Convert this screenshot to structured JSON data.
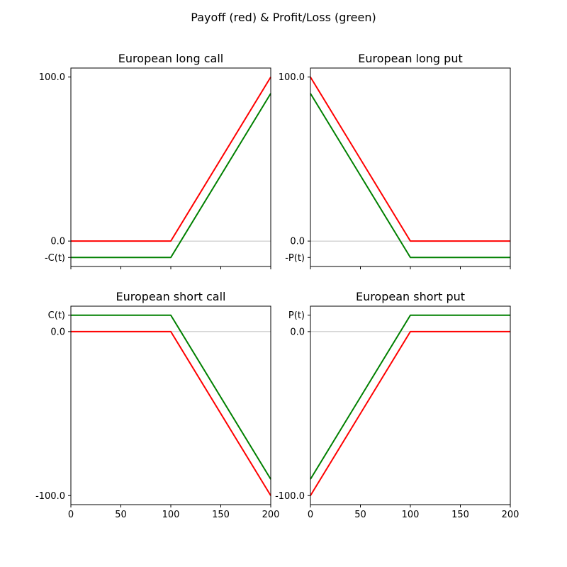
{
  "figure": {
    "suptitle": "Payoff (red) & Profit/Loss (green)"
  },
  "chart_data": [
    {
      "type": "line",
      "title": "European long call",
      "xlim": [
        0,
        200
      ],
      "ylim": [
        -15.5,
        105.5
      ],
      "xticks": [
        0,
        50,
        100,
        150,
        200
      ],
      "xtick_labels_shown": false,
      "yticks": [
        {
          "value": 100,
          "label": "100.0"
        },
        {
          "value": 0,
          "label": "0.0"
        },
        {
          "value": -10,
          "label": "-C(t)"
        }
      ],
      "zero_line": true,
      "series": [
        {
          "color": "#ff0000",
          "points": [
            [
              0,
              0
            ],
            [
              100,
              0
            ],
            [
              200,
              100
            ]
          ]
        },
        {
          "color": "#008000",
          "points": [
            [
              0,
              -10
            ],
            [
              100,
              -10
            ],
            [
              200,
              90
            ]
          ]
        }
      ]
    },
    {
      "type": "line",
      "title": "European long put",
      "xlim": [
        0,
        200
      ],
      "ylim": [
        -15.5,
        105.5
      ],
      "xticks": [
        0,
        50,
        100,
        150,
        200
      ],
      "xtick_labels_shown": false,
      "yticks": [
        {
          "value": 100,
          "label": "100.0"
        },
        {
          "value": 0,
          "label": "0.0"
        },
        {
          "value": -10,
          "label": "-P(t)"
        }
      ],
      "zero_line": true,
      "series": [
        {
          "color": "#ff0000",
          "points": [
            [
              0,
              100
            ],
            [
              100,
              0
            ],
            [
              200,
              0
            ]
          ]
        },
        {
          "color": "#008000",
          "points": [
            [
              0,
              90
            ],
            [
              100,
              -10
            ],
            [
              200,
              -10
            ]
          ]
        }
      ]
    },
    {
      "type": "line",
      "title": "European short call",
      "xlim": [
        0,
        200
      ],
      "ylim": [
        -105.5,
        15.5
      ],
      "xticks": [
        0,
        50,
        100,
        150,
        200
      ],
      "xtick_labels_shown": true,
      "yticks": [
        {
          "value": 10,
          "label": "C(t)"
        },
        {
          "value": 0,
          "label": "0.0"
        },
        {
          "value": -100,
          "label": "-100.0"
        }
      ],
      "zero_line": true,
      "series": [
        {
          "color": "#ff0000",
          "points": [
            [
              0,
              0
            ],
            [
              100,
              0
            ],
            [
              200,
              -100
            ]
          ]
        },
        {
          "color": "#008000",
          "points": [
            [
              0,
              10
            ],
            [
              100,
              10
            ],
            [
              200,
              -90
            ]
          ]
        }
      ]
    },
    {
      "type": "line",
      "title": "European short put",
      "xlim": [
        0,
        200
      ],
      "ylim": [
        -105.5,
        15.5
      ],
      "xticks": [
        0,
        50,
        100,
        150,
        200
      ],
      "xtick_labels_shown": true,
      "yticks": [
        {
          "value": 10,
          "label": "P(t)"
        },
        {
          "value": 0,
          "label": "0.0"
        },
        {
          "value": -100,
          "label": "-100.0"
        }
      ],
      "zero_line": true,
      "series": [
        {
          "color": "#ff0000",
          "points": [
            [
              0,
              -100
            ],
            [
              100,
              0
            ],
            [
              200,
              0
            ]
          ]
        },
        {
          "color": "#008000",
          "points": [
            [
              0,
              -90
            ],
            [
              100,
              10
            ],
            [
              200,
              10
            ]
          ]
        }
      ]
    }
  ]
}
